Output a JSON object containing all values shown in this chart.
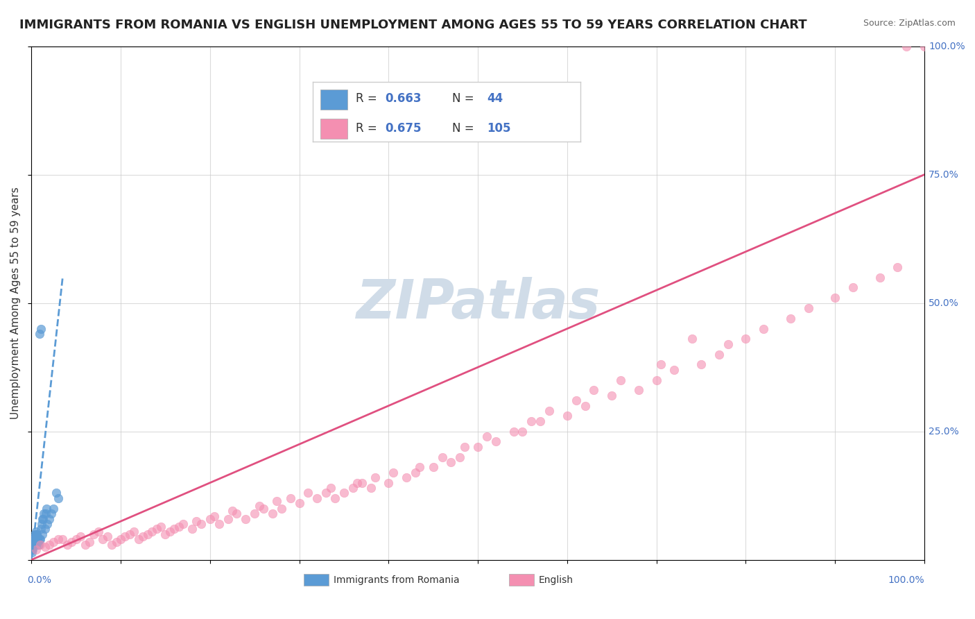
{
  "title": "IMMIGRANTS FROM ROMANIA VS ENGLISH UNEMPLOYMENT AMONG AGES 55 TO 59 YEARS CORRELATION CHART",
  "source": "Source: ZipAtlas.com",
  "ylabel": "Unemployment Among Ages 55 to 59 years",
  "ytick_labels": [
    "0.0%",
    "25.0%",
    "50.0%",
    "75.0%",
    "100.0%"
  ],
  "ytick_values": [
    0,
    25,
    50,
    75,
    100
  ],
  "xtick_values": [
    0,
    10,
    20,
    30,
    40,
    50,
    60,
    70,
    80,
    90,
    100
  ],
  "legend_entries": [
    {
      "label": "Immigrants from Romania",
      "R": "0.663",
      "N": "44",
      "color": "#a8c4e0"
    },
    {
      "label": "English",
      "R": "0.675",
      "N": "105",
      "color": "#f4a0b0"
    }
  ],
  "watermark": "ZIPatlas",
  "blue_scatter_x": [
    0.1,
    0.2,
    0.3,
    0.4,
    0.5,
    0.6,
    0.8,
    1.0,
    1.2,
    1.5,
    1.8,
    2.0,
    2.2,
    2.5,
    3.0,
    0.15,
    0.25,
    0.35,
    0.45,
    0.55,
    0.65,
    0.75,
    0.9,
    1.1,
    1.3,
    1.6,
    0.05,
    0.08,
    0.12,
    0.18,
    0.22,
    0.28,
    0.38,
    0.48,
    0.58,
    0.68,
    0.78,
    0.88,
    1.05,
    1.15,
    1.25,
    1.4,
    1.7,
    2.8
  ],
  "blue_scatter_y": [
    2,
    3,
    4,
    3,
    5,
    4,
    3,
    4,
    5,
    6,
    7,
    8,
    9,
    10,
    12,
    2.5,
    3.5,
    4.5,
    3.5,
    5.5,
    4.5,
    3.5,
    44,
    45,
    8,
    9,
    1.5,
    2,
    2.5,
    3,
    3.5,
    4,
    5,
    4,
    5,
    4,
    3,
    4,
    6,
    7,
    8,
    9,
    10,
    13
  ],
  "pink_scatter_x": [
    0.5,
    1.0,
    2.0,
    3.0,
    4.0,
    5.0,
    6.0,
    7.0,
    8.0,
    9.0,
    10.0,
    11.0,
    12.0,
    13.0,
    14.0,
    15.0,
    16.0,
    17.0,
    18.0,
    19.0,
    20.0,
    21.0,
    22.0,
    23.0,
    24.0,
    25.0,
    26.0,
    27.0,
    28.0,
    30.0,
    32.0,
    33.0,
    34.0,
    35.0,
    36.0,
    37.0,
    38.0,
    40.0,
    42.0,
    43.0,
    45.0,
    47.0,
    48.0,
    50.0,
    52.0,
    55.0,
    57.0,
    60.0,
    62.0,
    65.0,
    68.0,
    70.0,
    72.0,
    75.0,
    77.0,
    78.0,
    80.0,
    82.0,
    85.0,
    87.0,
    90.0,
    92.0,
    95.0,
    97.0,
    98.0,
    100.0,
    1.5,
    2.5,
    3.5,
    4.5,
    5.5,
    6.5,
    7.5,
    8.5,
    9.5,
    10.5,
    11.5,
    12.5,
    13.5,
    14.5,
    15.5,
    16.5,
    18.5,
    20.5,
    22.5,
    25.5,
    27.5,
    29.0,
    31.0,
    33.5,
    36.5,
    38.5,
    40.5,
    43.5,
    46.0,
    48.5,
    51.0,
    54.0,
    56.0,
    58.0,
    61.0,
    63.0,
    66.0,
    70.5,
    74.0
  ],
  "pink_scatter_y": [
    2,
    3,
    3,
    4,
    3,
    4,
    3,
    5,
    4,
    3,
    4,
    5,
    4,
    5,
    6,
    5,
    6,
    7,
    6,
    7,
    8,
    7,
    8,
    9,
    8,
    9,
    10,
    9,
    10,
    11,
    12,
    13,
    12,
    13,
    14,
    15,
    14,
    15,
    16,
    17,
    18,
    19,
    20,
    22,
    23,
    25,
    27,
    28,
    30,
    32,
    33,
    35,
    37,
    38,
    40,
    42,
    43,
    45,
    47,
    49,
    51,
    53,
    55,
    57,
    100,
    100,
    2.5,
    3.5,
    4,
    3.5,
    4.5,
    3.5,
    5.5,
    4.5,
    3.5,
    4.5,
    5.5,
    4.5,
    5.5,
    6.5,
    5.5,
    6.5,
    7.5,
    8.5,
    9.5,
    10.5,
    11.5,
    12,
    13,
    14,
    15,
    16,
    17,
    18,
    20,
    22,
    24,
    25,
    27,
    29,
    31,
    33,
    35,
    38,
    43
  ],
  "blue_line_x": [
    0,
    3.5
  ],
  "blue_line_y": [
    0,
    55
  ],
  "pink_line_x": [
    0,
    100
  ],
  "pink_line_y": [
    0,
    75
  ],
  "blue_color": "#5b9bd5",
  "pink_color": "#f48fb1",
  "blue_line_color": "#5b9bd5",
  "pink_line_color": "#e05080",
  "background_color": "#ffffff",
  "grid_color": "#cccccc",
  "watermark_color": "#d0dce8",
  "title_fontsize": 13,
  "axis_label_fontsize": 11,
  "tick_fontsize": 10,
  "legend_fontsize": 12
}
